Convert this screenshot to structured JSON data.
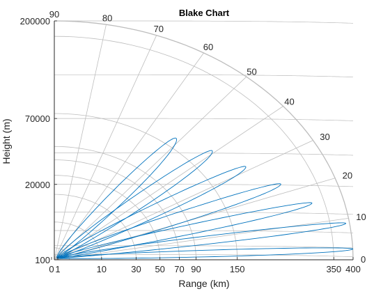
{
  "chart_data": {
    "type": "line",
    "title": "Blake Chart",
    "xlabel": "Range (km)",
    "ylabel": "Height (m)",
    "xlim": [
      0,
      400
    ],
    "ylim": [
      100,
      200000
    ],
    "x_ticks": [
      {
        "value": 0,
        "label": "0"
      },
      {
        "value": 1,
        "label": "1"
      },
      {
        "value": 10,
        "label": "10"
      },
      {
        "value": 30,
        "label": "30"
      },
      {
        "value": 50,
        "label": "50"
      },
      {
        "value": 70,
        "label": "70"
      },
      {
        "value": 90,
        "label": "90"
      },
      {
        "value": 150,
        "label": "150"
      },
      {
        "value": 350,
        "label": "350"
      },
      {
        "value": 400,
        "label": "400"
      }
    ],
    "y_ticks": [
      {
        "value": 100,
        "label": "100"
      },
      {
        "value": 20000,
        "label": "20000"
      },
      {
        "value": 70000,
        "label": "70000"
      },
      {
        "value": 200000,
        "label": "200000"
      }
    ],
    "angle_ticks": [
      0,
      10,
      20,
      30,
      40,
      50,
      60,
      70,
      80,
      90
    ],
    "grid": true,
    "lobe_color": "#0072bd",
    "grid_color": "#bdbdbd",
    "lobes": [
      {
        "angle_deg": 2.6,
        "peak_range_km": 400
      },
      {
        "angle_deg": 8.9,
        "peak_range_km": 390
      },
      {
        "angle_deg": 15.4,
        "peak_range_km": 320
      },
      {
        "angle_deg": 22.7,
        "peak_range_km": 270
      },
      {
        "angle_deg": 31.3,
        "peak_range_km": 225
      },
      {
        "angle_deg": 40.8,
        "peak_range_km": 195
      },
      {
        "angle_deg": 51.3,
        "peak_range_km": 170
      }
    ]
  }
}
